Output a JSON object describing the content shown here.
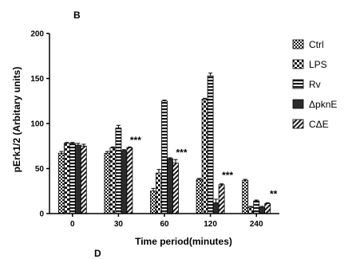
{
  "panel_labels": {
    "top": "B",
    "bottom": "D"
  },
  "chart_data": {
    "type": "bar",
    "title": "",
    "xlabel": "Time period(minutes)",
    "ylabel": "pErk1/2 (Arbitary units)",
    "ylim": [
      0,
      200
    ],
    "yticks": [
      0,
      50,
      100,
      150,
      200
    ],
    "categories": [
      "0",
      "30",
      "60",
      "120",
      "240"
    ],
    "legend_position": "right",
    "series": [
      {
        "name": "Ctrl",
        "pattern": "checker-fine",
        "values": [
          67,
          67,
          25,
          38,
          37
        ],
        "errors": [
          2,
          2,
          3,
          1,
          1
        ]
      },
      {
        "name": "LPS",
        "pattern": "checker-coarse",
        "values": [
          78,
          73,
          45,
          127,
          7
        ],
        "errors": [
          1,
          1,
          4,
          1,
          1
        ]
      },
      {
        "name": "Rv",
        "pattern": "horizontal-lines",
        "values": [
          78,
          95,
          125,
          153,
          14
        ],
        "errors": [
          1,
          3,
          1,
          3,
          1
        ]
      },
      {
        "name": "ΔpknE",
        "pattern": "solid",
        "values": [
          76,
          70,
          61,
          12,
          7
        ],
        "errors": [
          2,
          1,
          1,
          4,
          1
        ]
      },
      {
        "name": "CΔE",
        "pattern": "diagonal",
        "values": [
          75,
          73,
          56,
          32,
          11
        ],
        "errors": [
          2,
          1,
          4,
          1,
          1
        ]
      }
    ],
    "annotations": [
      {
        "category": "30",
        "text": "***",
        "y": 78
      },
      {
        "category": "60",
        "text": "***",
        "y": 64
      },
      {
        "category": "120",
        "text": "***",
        "y": 39
      },
      {
        "category": "240",
        "text": "**",
        "y": 18
      }
    ],
    "colors": {
      "bar_fill": "#1a1a1a",
      "background": "#ffffff"
    }
  }
}
